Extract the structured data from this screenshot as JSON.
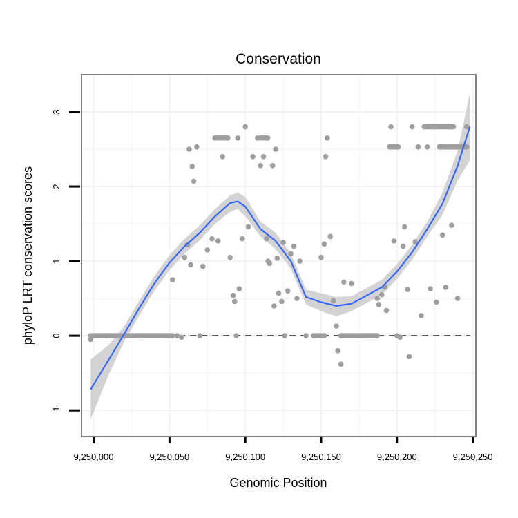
{
  "chart_data": {
    "type": "scatter",
    "title": "Conservation",
    "xlabel": "Genomic Position",
    "ylabel": "phyloP LRT conservation scores",
    "xlim": [
      9249992,
      9250252
    ],
    "ylim": [
      -1.35,
      3.5
    ],
    "x_ticks": [
      9250000,
      9250050,
      9250100,
      9250150,
      9250200,
      9250250
    ],
    "x_tick_labels": [
      "9,250,000",
      "9,250,050",
      "9,250,100",
      "9,250,150",
      "9,250,200",
      "9,250,250"
    ],
    "y_ticks": [
      -1,
      0,
      1,
      2,
      3
    ],
    "y_tick_labels": [
      "-1",
      "0",
      "1",
      "2",
      "3"
    ],
    "grid": true,
    "reference_line": {
      "y": 0,
      "style": "dashed"
    },
    "colors": {
      "points": "#9e9e9e",
      "smooth_line": "#3366ff",
      "confidence_band": "#d3d3d3",
      "panel_border": "#7f7f7f",
      "grid": "#f2f2f2"
    },
    "series": [
      {
        "name": "conservation scores",
        "kind": "points",
        "x": [
          9249998,
          9250008,
          9250020,
          9250030,
          9250040,
          9250052,
          9250055,
          9250058,
          9250060,
          9250062,
          9250063,
          9250064,
          9250065,
          9250066,
          9250068,
          9250070,
          9250072,
          9250075,
          9250078,
          9250080,
          9250082,
          9250085,
          9250088,
          9250090,
          9250092,
          9250093,
          9250094,
          9250095,
          9250096,
          9250098,
          9250100,
          9250102,
          9250105,
          9250108,
          9250110,
          9250112,
          9250114,
          9250115,
          9250116,
          9250118,
          9250119,
          9250120,
          9250121,
          9250122,
          9250124,
          9250125,
          9250126,
          9250128,
          9250130,
          9250132,
          9250134,
          9250136,
          9250140,
          9250145,
          9250150,
          9250152,
          9250153,
          9250154,
          9250156,
          9250158,
          9250160,
          9250161,
          9250163,
          9250165,
          9250170,
          9250180,
          9250185,
          9250187,
          9250188,
          9250190,
          9250192,
          9250193,
          9250195,
          9250196,
          9250198,
          9250200,
          9250202,
          9250204,
          9250205,
          9250207,
          9250208,
          9250210,
          9250212,
          9250214,
          9250216,
          9250218,
          9250220,
          9250222,
          9250224,
          9250226,
          9250228,
          9250230,
          9250232,
          9250234,
          9250236,
          9250240,
          9250244,
          9250246
        ],
        "y": [
          -0.05,
          0.0,
          0.0,
          0.0,
          0.0,
          0.75,
          0.0,
          -0.02,
          1.05,
          1.22,
          2.5,
          0.95,
          2.27,
          2.07,
          2.53,
          0.0,
          0.93,
          1.15,
          1.3,
          2.65,
          1.27,
          2.4,
          2.65,
          1.05,
          0.54,
          0.46,
          0.0,
          2.65,
          0.63,
          1.3,
          2.8,
          1.46,
          2.4,
          2.65,
          2.28,
          2.4,
          1.3,
          1.0,
          0.97,
          2.28,
          0.4,
          2.5,
          1.04,
          0.57,
          0.46,
          1.25,
          0.0,
          0.6,
          1.1,
          1.2,
          0.5,
          1.0,
          0.0,
          0.0,
          1.05,
          1.23,
          2.4,
          2.65,
          1.33,
          0.47,
          0.13,
          -0.2,
          -0.38,
          0.72,
          0.7,
          0.0,
          0.0,
          0.5,
          0.42,
          0.55,
          0.65,
          0.34,
          2.53,
          2.8,
          1.27,
          0.0,
          -0.02,
          1.2,
          1.46,
          0.62,
          -0.28,
          2.8,
          1.26,
          2.53,
          0.27,
          2.8,
          2.53,
          0.63,
          2.8,
          0.45,
          2.53,
          1.35,
          0.65,
          2.8,
          1.48,
          0.5,
          2.53,
          2.8
        ]
      },
      {
        "name": "smoothed fit",
        "kind": "line",
        "x": [
          9249998,
          9250010,
          9250020,
          9250030,
          9250040,
          9250050,
          9250060,
          9250070,
          9250080,
          9250090,
          9250095,
          9250100,
          9250110,
          9250120,
          9250130,
          9250140,
          9250150,
          9250160,
          9250170,
          9250180,
          9250190,
          9250200,
          9250210,
          9250220,
          9250230,
          9250240,
          9250248
        ],
        "y": [
          -0.72,
          -0.32,
          0.02,
          0.37,
          0.7,
          0.98,
          1.2,
          1.38,
          1.6,
          1.78,
          1.8,
          1.73,
          1.43,
          1.27,
          1.0,
          0.52,
          0.45,
          0.4,
          0.43,
          0.54,
          0.65,
          0.86,
          1.12,
          1.43,
          1.77,
          2.28,
          2.8
        ],
        "ci_lower": [
          -1.12,
          -0.52,
          -0.08,
          0.27,
          0.6,
          0.88,
          1.1,
          1.28,
          1.5,
          1.66,
          1.7,
          1.6,
          1.33,
          1.16,
          0.9,
          0.42,
          0.33,
          0.26,
          0.33,
          0.44,
          0.55,
          0.76,
          1.02,
          1.33,
          1.62,
          2.08,
          2.35
        ],
        "ci_upper": [
          -0.32,
          -0.12,
          0.12,
          0.47,
          0.8,
          1.08,
          1.3,
          1.48,
          1.7,
          1.88,
          1.92,
          1.86,
          1.53,
          1.38,
          1.1,
          0.62,
          0.57,
          0.52,
          0.53,
          0.64,
          0.75,
          0.96,
          1.22,
          1.53,
          1.92,
          2.48,
          3.25
        ]
      }
    ]
  }
}
